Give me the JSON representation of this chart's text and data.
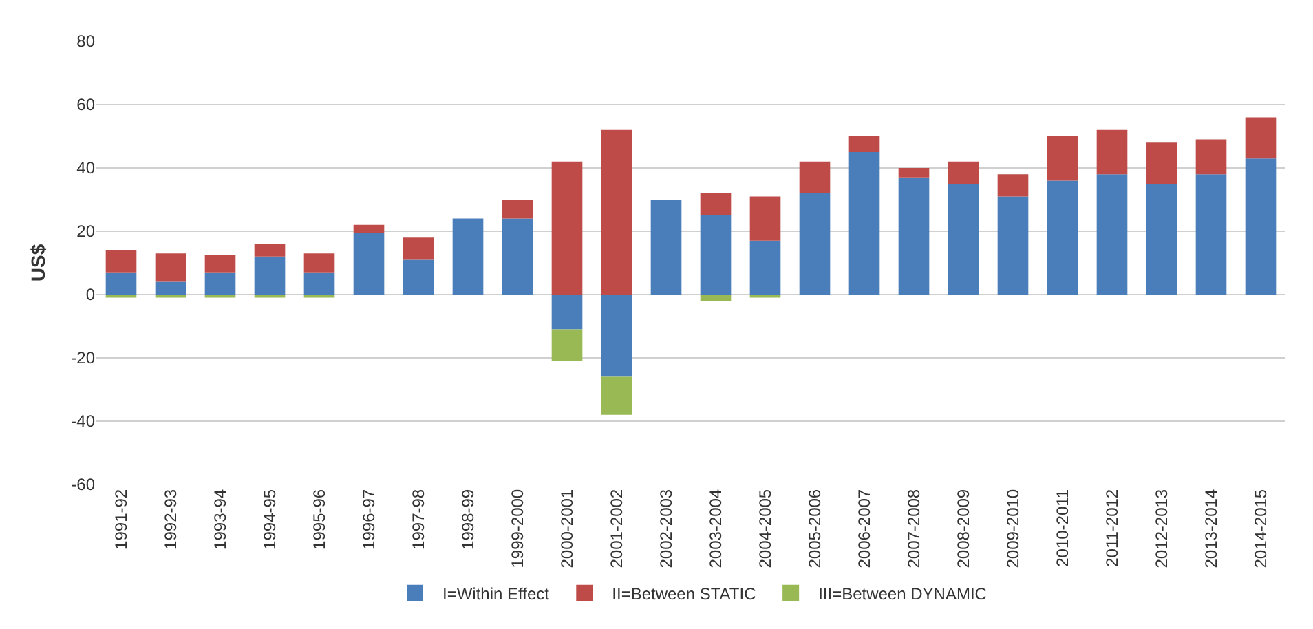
{
  "chart_data": {
    "type": "bar",
    "stacked": true,
    "ylabel": "US$",
    "categories": [
      "1991-92",
      "1992-93",
      "1993-94",
      "1994-95",
      "1995-96",
      "1996-97",
      "1997-98",
      "1998-99",
      "1999-2000",
      "2000-2001",
      "2001-2002",
      "2002-2003",
      "2003-2004",
      "2004-2005",
      "2005-2006",
      "2006-2007",
      "2007-2008",
      "2008-2009",
      "2009-2010",
      "2010-2011",
      "2011-2012",
      "2012-2013",
      "2013-2014",
      "2014-2015"
    ],
    "series": [
      {
        "name": "I=Within Effect",
        "color": "#4a7ebb",
        "values": [
          7,
          4,
          7,
          12,
          7,
          19.5,
          11,
          24,
          24,
          -11,
          -26,
          30,
          25,
          17,
          32,
          45,
          37,
          35,
          31,
          36,
          38,
          35,
          38,
          43
        ]
      },
      {
        "name": "II=Between STATIC",
        "color": "#be4b48",
        "values": [
          7,
          9,
          5.5,
          4,
          6,
          2.5,
          7,
          0,
          6,
          42,
          52,
          0,
          7,
          14,
          10,
          5,
          3,
          7,
          7,
          14,
          14,
          13,
          11,
          13
        ]
      },
      {
        "name": "III=Between DYNAMIC",
        "color": "#98b954",
        "values": [
          -1,
          -1,
          -1,
          -1,
          -1,
          0,
          0,
          0,
          0,
          -10,
          -12,
          0,
          -2,
          -1,
          0,
          0,
          0,
          0,
          0,
          0,
          0,
          0,
          0,
          0
        ]
      }
    ],
    "ylim": [
      -60,
      80
    ],
    "yticks": [
      -60,
      -40,
      -20,
      0,
      20,
      40,
      60,
      80
    ],
    "grid": "y",
    "legend": "bottom"
  }
}
